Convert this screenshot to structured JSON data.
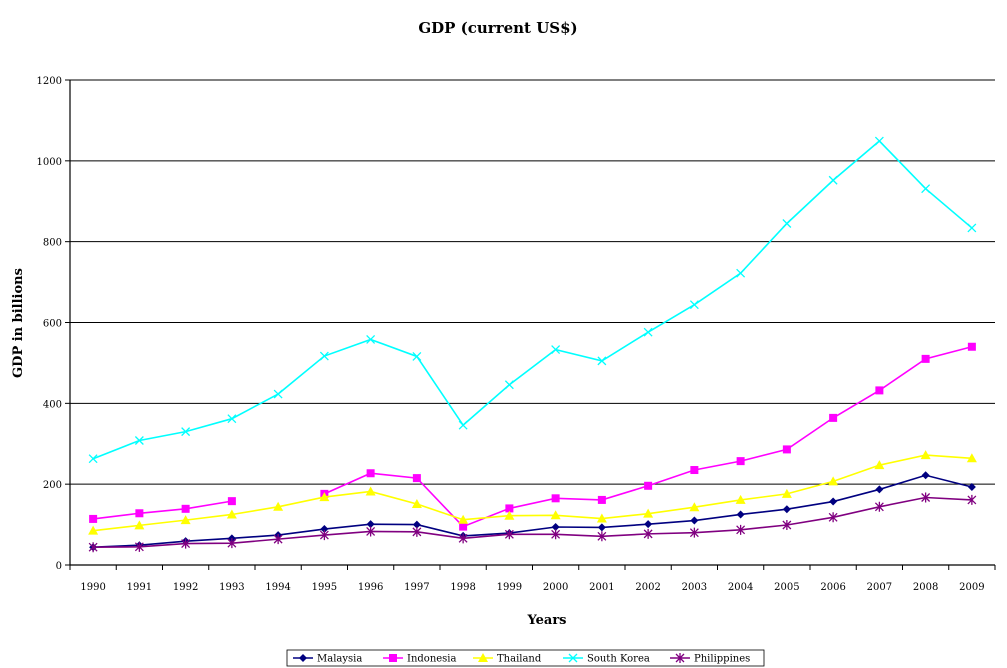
{
  "chart_data": {
    "type": "line",
    "title": "GDP (current US$)",
    "xlabel": "Years",
    "ylabel": "GDP in billions",
    "ylim": [
      0,
      1200
    ],
    "yticks": [
      0,
      200,
      400,
      600,
      800,
      1000,
      1200
    ],
    "grid": "horizontal",
    "legend_position": "bottom",
    "categories": [
      "1990",
      "1991",
      "1992",
      "1993",
      "1994",
      "1995",
      "1996",
      "1997",
      "1998",
      "1999",
      "2000",
      "2001",
      "2002",
      "2003",
      "2004",
      "2005",
      "2006",
      "2007",
      "2008",
      "2009"
    ],
    "series": [
      {
        "name": "Malaysia",
        "color": "#000080",
        "marker": "diamond",
        "values": [
          44,
          49,
          59,
          66,
          74,
          89,
          101,
          100,
          72,
          79,
          94,
          93,
          101,
          110,
          125,
          138,
          157,
          187,
          222,
          193
        ]
      },
      {
        "name": "Indonesia",
        "color": "#ff00ff",
        "marker": "square",
        "values": [
          114,
          128,
          139,
          158,
          null,
          176,
          227,
          215,
          95,
          140,
          165,
          161,
          196,
          235,
          257,
          286,
          364,
          432,
          510,
          540
        ]
      },
      {
        "name": "Thailand",
        "color": "#ffff00",
        "marker": "triangle",
        "values": [
          85,
          98,
          111,
          125,
          144,
          168,
          182,
          151,
          112,
          122,
          123,
          115,
          127,
          143,
          161,
          176,
          207,
          247,
          272,
          264
        ]
      },
      {
        "name": "South Korea",
        "color": "#00ffff",
        "marker": "x",
        "values": [
          263,
          308,
          330,
          362,
          423,
          517,
          558,
          516,
          346,
          446,
          533,
          505,
          576,
          644,
          722,
          845,
          952,
          1049,
          931,
          834
        ]
      },
      {
        "name": "Philippines",
        "color": "#800080",
        "marker": "star",
        "values": [
          44,
          45,
          53,
          54,
          64,
          74,
          83,
          82,
          66,
          76,
          76,
          71,
          77,
          80,
          87,
          99,
          118,
          144,
          167,
          161
        ]
      }
    ]
  }
}
